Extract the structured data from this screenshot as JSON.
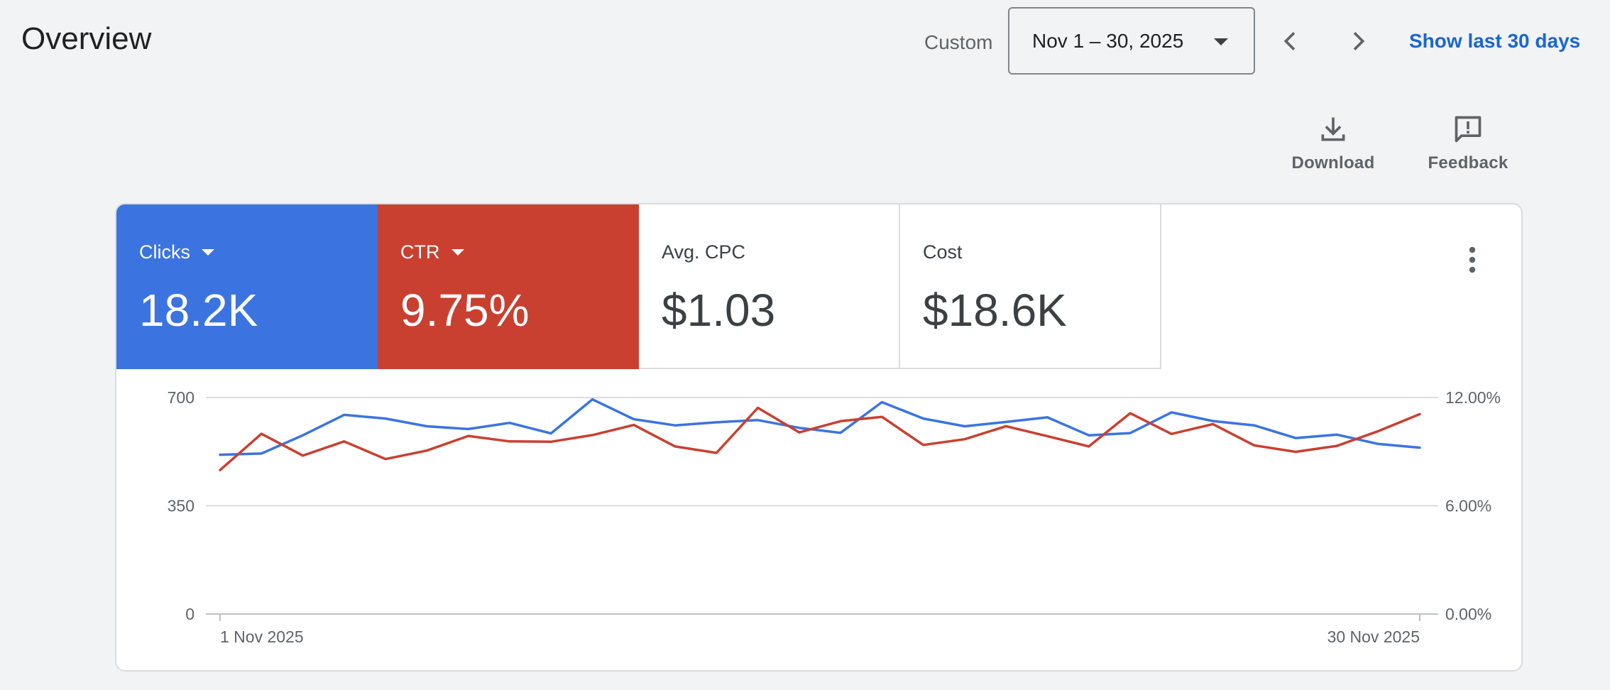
{
  "header": {
    "title": "Overview",
    "range_label": "Custom",
    "date_range": "Nov 1 – 30, 2025",
    "show_last_label": "Show last 30 days",
    "prev_icon": "chevron-left-icon",
    "next_icon": "chevron-right-icon"
  },
  "actions": {
    "download_label": "Download",
    "download_icon": "download-icon",
    "feedback_label": "Feedback",
    "feedback_icon": "feedback-icon"
  },
  "metrics": [
    {
      "label": "Clicks",
      "value": "18.2K",
      "selected": true,
      "color": "#3b74e0"
    },
    {
      "label": "CTR",
      "value": "9.75%",
      "selected": true,
      "color": "#c94030"
    },
    {
      "label": "Avg. CPC",
      "value": "$1.03",
      "selected": false
    },
    {
      "label": "Cost",
      "value": "$18.6K",
      "selected": false
    }
  ],
  "chart_data": {
    "type": "line",
    "x_start_label": "1 Nov 2025",
    "x_end_label": "30 Nov 2025",
    "x": [
      1,
      2,
      3,
      4,
      5,
      6,
      7,
      8,
      9,
      10,
      11,
      12,
      13,
      14,
      15,
      16,
      17,
      18,
      19,
      20,
      21,
      22,
      23,
      24,
      25,
      26,
      27,
      28,
      29,
      30
    ],
    "grid": true,
    "left_axis": {
      "ticks": [
        "0",
        "350",
        "700"
      ],
      "ylim": [
        0,
        700
      ]
    },
    "right_axis": {
      "ticks": [
        "0.00%",
        "6.00%",
        "12.00%"
      ],
      "ylim": [
        0,
        12
      ]
    },
    "series": [
      {
        "name": "Clicks",
        "axis": "left",
        "color": "#3b74e0",
        "values": [
          515,
          519,
          578,
          644,
          632,
          607,
          598,
          618,
          584,
          694,
          630,
          610,
          620,
          627,
          602,
          586,
          685,
          632,
          607,
          621,
          636,
          578,
          585,
          652,
          624,
          610,
          569,
          580,
          550,
          538
        ]
      },
      {
        "name": "CTR",
        "axis": "right",
        "color": "#c94030",
        "values": [
          7.98,
          9.99,
          8.78,
          9.57,
          8.59,
          9.06,
          9.87,
          9.57,
          9.55,
          9.92,
          10.48,
          9.29,
          8.93,
          11.43,
          10.07,
          10.69,
          10.93,
          9.37,
          9.69,
          10.41,
          9.86,
          9.29,
          11.13,
          9.98,
          10.53,
          9.35,
          8.99,
          9.32,
          10.14,
          11.08
        ]
      }
    ]
  },
  "more_icon": "more-vert-icon"
}
